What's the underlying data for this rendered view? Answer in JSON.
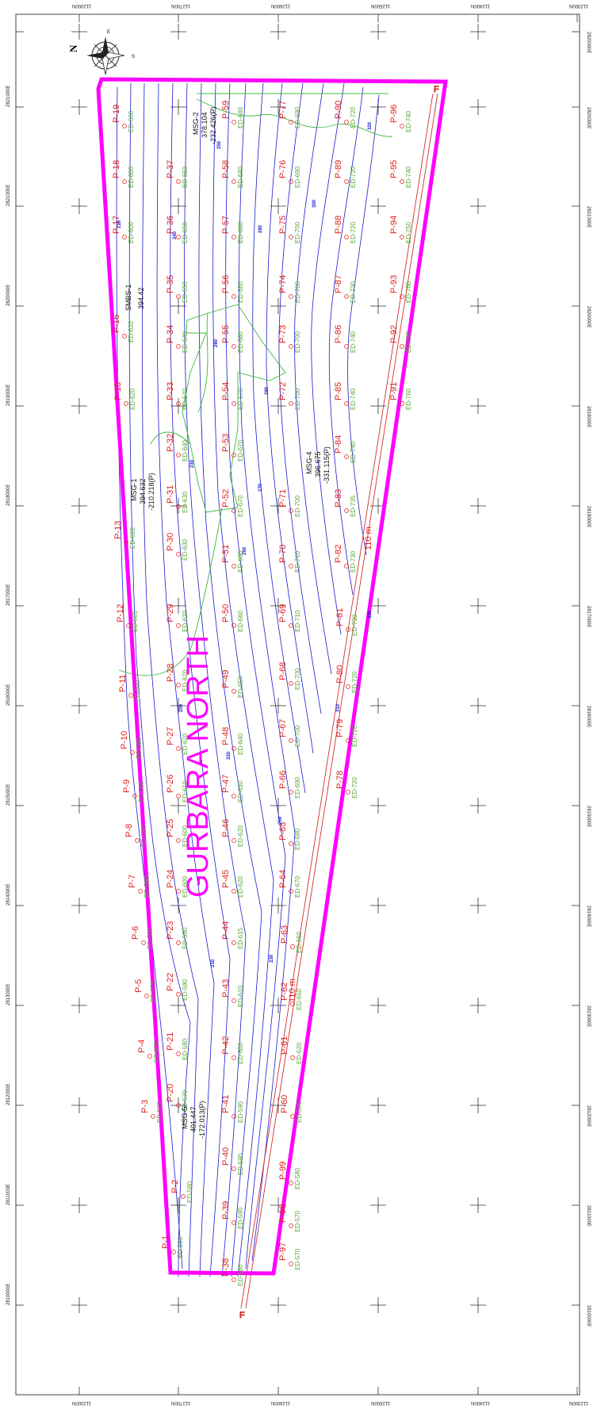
{
  "map": {
    "title": "GURBARA NORTH",
    "colors": {
      "boundary": "#ff00ff",
      "contour": "#1a1ad0",
      "stream": "#3cb83c",
      "point_label": "#e02020",
      "elevation_label": "#5aa53c",
      "fault": "#d03030"
    },
    "edge_labels": [
      "112000N",
      "112700N",
      "112600N",
      "112500N",
      "112400N",
      "112300N"
    ],
    "side_labels": [
      "2820000E",
      "2821000E",
      "2820000E",
      "2819000E",
      "2818000E",
      "2817000E",
      "2816000E",
      "2815000E",
      "2814000E",
      "2813000E",
      "2812000E",
      "2811000E",
      "2810000E"
    ],
    "compass": {
      "north": "N",
      "east": "E",
      "south": "S"
    },
    "points": [
      {
        "id": "P-1",
        "ed": "ED-580"
      },
      {
        "id": "P-2",
        "ed": "ED-580"
      },
      {
        "id": "P-3",
        "ed": "ED-570"
      },
      {
        "id": "P-4",
        "ed": "ED-570"
      },
      {
        "id": "P-5",
        "ed": "ED-570"
      },
      {
        "id": "P-6",
        "ed": "ED-580"
      },
      {
        "id": "P-7",
        "ed": "ED-590"
      },
      {
        "id": "P-8",
        "ed": "ED-590"
      },
      {
        "id": "P-9",
        "ed": "ED-580"
      },
      {
        "id": "P-10",
        "ed": "ED-580"
      },
      {
        "id": "P-11",
        "ed": "ED-600"
      },
      {
        "id": "P-12",
        "ed": "ED-605"
      },
      {
        "id": "P-13",
        "ed": "ED-622"
      },
      {
        "id": "P-15",
        "ed": "ED-620"
      },
      {
        "id": "P-16",
        "ed": "ED-620"
      },
      {
        "id": "P-17",
        "ed": "ED-600"
      },
      {
        "id": "P-18",
        "ed": "ED-600"
      },
      {
        "id": "P-19",
        "ed": "ED-600"
      },
      {
        "id": "P-20",
        "ed": "ED-570"
      },
      {
        "id": "P-21",
        "ed": "ED-580"
      },
      {
        "id": "P-22",
        "ed": "ED-590"
      },
      {
        "id": "P-23",
        "ed": "ED-590"
      },
      {
        "id": "P-24",
        "ed": "ED-600"
      },
      {
        "id": "P-25",
        "ed": "ED-600"
      },
      {
        "id": "P-26",
        "ed": "ED-610"
      },
      {
        "id": "P-27",
        "ed": "ED-620"
      },
      {
        "id": "P-28",
        "ed": "ED-620"
      },
      {
        "id": "P-29",
        "ed": "ED-620"
      },
      {
        "id": "P-30",
        "ed": "ED-630"
      },
      {
        "id": "P-31",
        "ed": "ED-630"
      },
      {
        "id": "P-32",
        "ed": "ED-640"
      },
      {
        "id": "P-33",
        "ed": "ED-640"
      },
      {
        "id": "P-34",
        "ed": "ED-640"
      },
      {
        "id": "P-35",
        "ed": "ED-650"
      },
      {
        "id": "P-36",
        "ed": "ED-650"
      },
      {
        "id": "P-37",
        "ed": "ED-650"
      },
      {
        "id": "P-38",
        "ed": "ED-580"
      },
      {
        "id": "P-39",
        "ed": "ED-590"
      },
      {
        "id": "P-40",
        "ed": "ED-590"
      },
      {
        "id": "P-41",
        "ed": "ED-590"
      },
      {
        "id": "P-42",
        "ed": "ED-600"
      },
      {
        "id": "P-43",
        "ed": "ED-610"
      },
      {
        "id": "P-44",
        "ed": "ED-615"
      },
      {
        "id": "P-45",
        "ed": "ED-620"
      },
      {
        "id": "P-46",
        "ed": "ED-620"
      },
      {
        "id": "P-47",
        "ed": "ED-630"
      },
      {
        "id": "P-48",
        "ed": "ED-640"
      },
      {
        "id": "P-49",
        "ed": "ED-650"
      },
      {
        "id": "P-50",
        "ed": "ED-660"
      },
      {
        "id": "P-51",
        "ed": "ED-660"
      },
      {
        "id": "P-52",
        "ed": "ED-670"
      },
      {
        "id": "P-53",
        "ed": "ED-670"
      },
      {
        "id": "P-54",
        "ed": "ED-670"
      },
      {
        "id": "P-55",
        "ed": "ED-680"
      },
      {
        "id": "P-56",
        "ed": "ED-680"
      },
      {
        "id": "P-57",
        "ed": "ED-680"
      },
      {
        "id": "P-58",
        "ed": "ED-680"
      },
      {
        "id": "P-59",
        "ed": "ED-680"
      },
      {
        "id": "P-60",
        "ed": "ED-590"
      },
      {
        "id": "P-61",
        "ed": "ED-620"
      },
      {
        "id": "P-62",
        "ed": "ED-650"
      },
      {
        "id": "P-63",
        "ed": "ED-650"
      },
      {
        "id": "P-64",
        "ed": "ED-670"
      },
      {
        "id": "P-65",
        "ed": "ED-680"
      },
      {
        "id": "P-66",
        "ed": "ED-690"
      },
      {
        "id": "P-67",
        "ed": "ED-700"
      },
      {
        "id": "P-68",
        "ed": "ED-700"
      },
      {
        "id": "P-69",
        "ed": "ED-710"
      },
      {
        "id": "P-70",
        "ed": "ED-710"
      },
      {
        "id": "P-71",
        "ed": "ED-700"
      },
      {
        "id": "P-72",
        "ed": "ED-700"
      },
      {
        "id": "P-73",
        "ed": "ED-700"
      },
      {
        "id": "P-74",
        "ed": "ED-700"
      },
      {
        "id": "P-75",
        "ed": "ED-700"
      },
      {
        "id": "P-76",
        "ed": "ED-690"
      },
      {
        "id": "P-77",
        "ed": "ED-690"
      },
      {
        "id": "P-78",
        "ed": "ED-720"
      },
      {
        "id": "P-79",
        "ed": "ED-720"
      },
      {
        "id": "P-80",
        "ed": "ED-720"
      },
      {
        "id": "P-81",
        "ed": "ED-730"
      },
      {
        "id": "P-82",
        "ed": "ED-730"
      },
      {
        "id": "P-83",
        "ed": "ED-735"
      },
      {
        "id": "P-84",
        "ed": "ED-740"
      },
      {
        "id": "P-85",
        "ed": "ED-740"
      },
      {
        "id": "P-86",
        "ed": "ED-740"
      },
      {
        "id": "P-87",
        "ed": "ED-730"
      },
      {
        "id": "P-88",
        "ed": "ED-720"
      },
      {
        "id": "P-89",
        "ed": "ED-720"
      },
      {
        "id": "P-90",
        "ed": "ED-720"
      },
      {
        "id": "P-91",
        "ed": "ED-760"
      },
      {
        "id": "P-92",
        "ed": "ED-760"
      },
      {
        "id": "P-93",
        "ed": "ED-760"
      },
      {
        "id": "P-94",
        "ed": "ED-750"
      },
      {
        "id": "P-95",
        "ed": "ED-740"
      },
      {
        "id": "P-96",
        "ed": "ED-740"
      },
      {
        "id": "P-97",
        "ed": "ED-570"
      },
      {
        "id": "P-98",
        "ed": "ED-570"
      },
      {
        "id": "P-99",
        "ed": "ED-580"
      }
    ],
    "boreholes": [
      {
        "id": "MSG-1",
        "v1": "394.632",
        "v2": "-210.218(P)"
      },
      {
        "id": "MSG-2",
        "v1": "378.104",
        "v2": "-232.426(P)"
      },
      {
        "id": "MSG-4",
        "v1": "396.675",
        "v2": "-331.115(P)"
      },
      {
        "id": "MSG-5",
        "v1": "401.447",
        "v2": "-172.013(P)"
      },
      {
        "id": "SMBS-1",
        "v1": "394.42",
        "v2": ""
      }
    ],
    "distance_labels": [
      "110 m",
      "110 m"
    ],
    "fault_marks": [
      "F",
      "F"
    ],
    "contour_values": [
      "200",
      "210",
      "220",
      "230",
      "240",
      "250",
      "260",
      "270",
      "280",
      "290",
      "300",
      "310",
      "320",
      "330"
    ]
  }
}
